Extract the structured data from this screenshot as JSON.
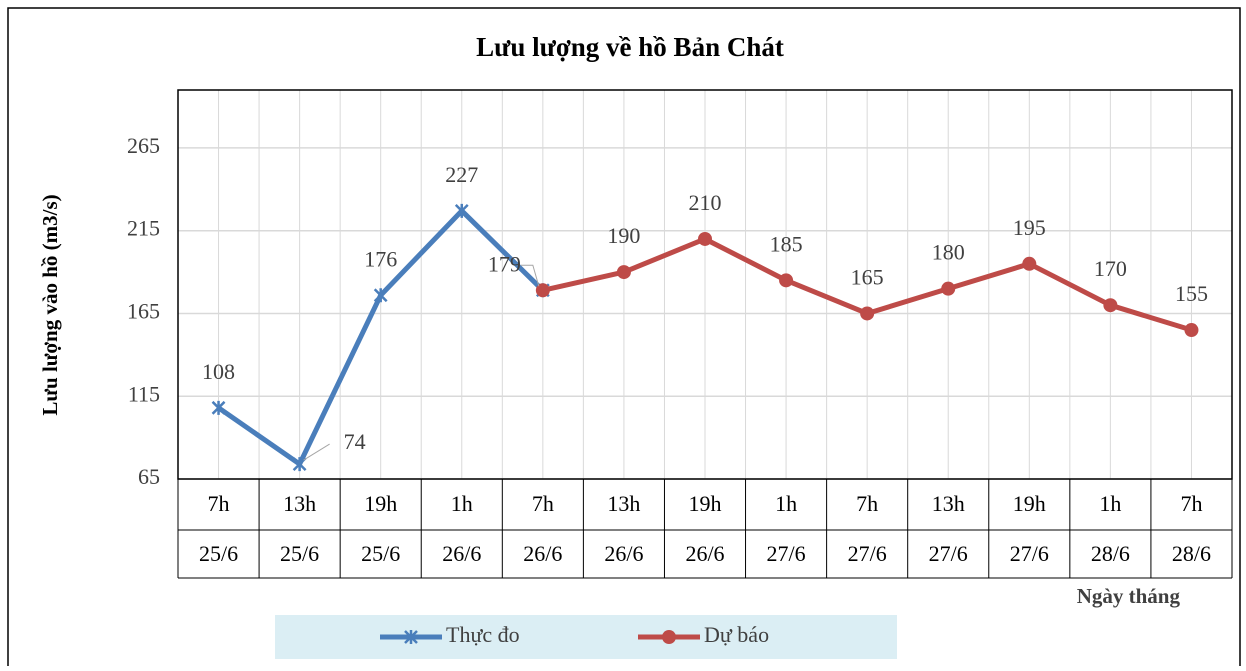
{
  "chart_data": {
    "type": "line",
    "title": "Lưu lượng về hồ Bản Chát",
    "y_label": "Lưu lượng vào hồ (m3/s)",
    "x_label": "Ngày tháng",
    "categories": [
      [
        "7h",
        "25/6"
      ],
      [
        "13h",
        "25/6"
      ],
      [
        "19h",
        "25/6"
      ],
      [
        "1h",
        "26/6"
      ],
      [
        "7h",
        "26/6"
      ],
      [
        "13h",
        "26/6"
      ],
      [
        "19h",
        "26/6"
      ],
      [
        "1h",
        "27/6"
      ],
      [
        "7h",
        "27/6"
      ],
      [
        "13h",
        "27/6"
      ],
      [
        "19h",
        "27/6"
      ],
      [
        "1h",
        "28/6"
      ],
      [
        "7h",
        "28/6"
      ]
    ],
    "series": [
      {
        "name": "Thực đo",
        "color": "#4a7ebb",
        "marker": "star",
        "values": [
          108,
          74,
          176,
          227,
          179,
          null,
          null,
          null,
          null,
          null,
          null,
          null,
          null
        ]
      },
      {
        "name": "Dự báo",
        "color": "#be4b48",
        "marker": "circle",
        "values": [
          null,
          null,
          null,
          null,
          179,
          190,
          210,
          185,
          165,
          180,
          195,
          170,
          155
        ]
      }
    ],
    "ylim": [
      65,
      300
    ],
    "yticks": [
      65,
      115,
      165,
      215,
      265
    ],
    "grid": true,
    "legend": "bottom"
  }
}
